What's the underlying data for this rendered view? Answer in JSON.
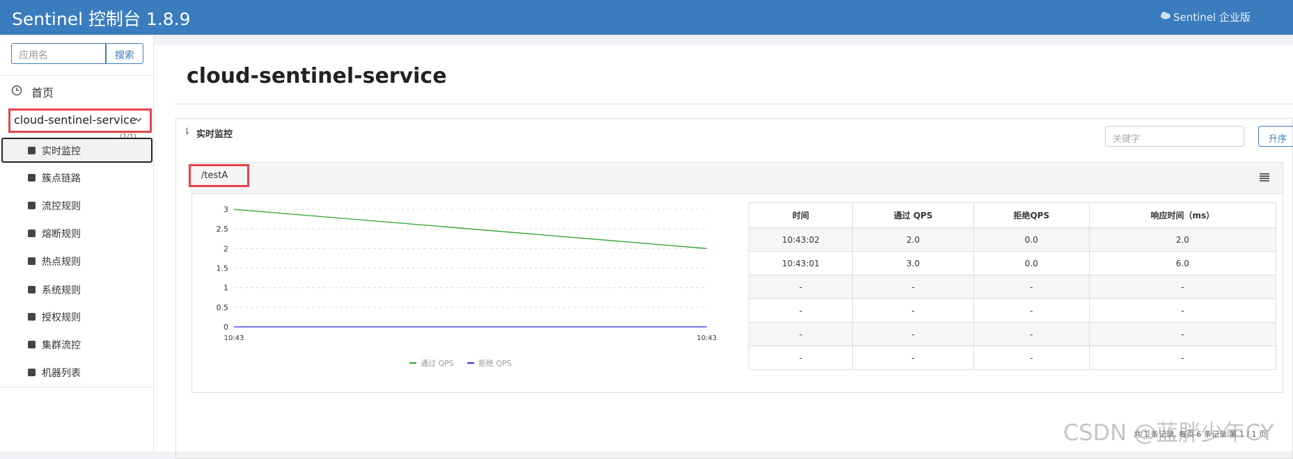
{
  "header": {
    "title": "Sentinel 控制台 1.8.9",
    "enterprise": "Sentinel 企业版"
  },
  "sidebar": {
    "search_placeholder": "应用名",
    "search_button": "搜索",
    "home": "首页",
    "app": "cloud-sentinel-service",
    "app_count": "(1/1)",
    "menu": [
      "实时监控",
      "簇点链路",
      "流控规则",
      "熔断规则",
      "热点规则",
      "系统规则",
      "授权规则",
      "集群流控",
      "机器列表"
    ]
  },
  "main": {
    "title": "cloud-sentinel-service",
    "panel_title": "实时监控",
    "keyword_placeholder": "关键字",
    "sort_button": "升序",
    "resource": "/testA",
    "pagination": "共 1 条记录, 每页 6 条记录 第 1 / 1 页"
  },
  "chart_data": {
    "type": "line",
    "categories": [
      "10:43",
      "10:43"
    ],
    "series": [
      {
        "name": "通过 QPS",
        "color": "#2ca02c",
        "values": [
          3,
          2
        ]
      },
      {
        "name": "拒绝 QPS",
        "color": "#2b2bf0",
        "values": [
          0,
          0
        ]
      }
    ],
    "ylim": [
      0,
      3
    ],
    "yticks": [
      0,
      0.5,
      1,
      1.5,
      2,
      2.5,
      3
    ],
    "grid": true
  },
  "table": {
    "columns": [
      "时间",
      "通过 QPS",
      "拒绝QPS",
      "响应时间（ms）"
    ],
    "rows": [
      [
        "10:43:02",
        "2.0",
        "0.0",
        "2.0"
      ],
      [
        "10:43:01",
        "3.0",
        "0.0",
        "6.0"
      ],
      [
        "-",
        "-",
        "-",
        "-"
      ],
      [
        "-",
        "-",
        "-",
        "-"
      ],
      [
        "-",
        "-",
        "-",
        "-"
      ],
      [
        "-",
        "-",
        "-",
        "-"
      ]
    ]
  },
  "watermark": "CSDN @蓝胖少年CY"
}
